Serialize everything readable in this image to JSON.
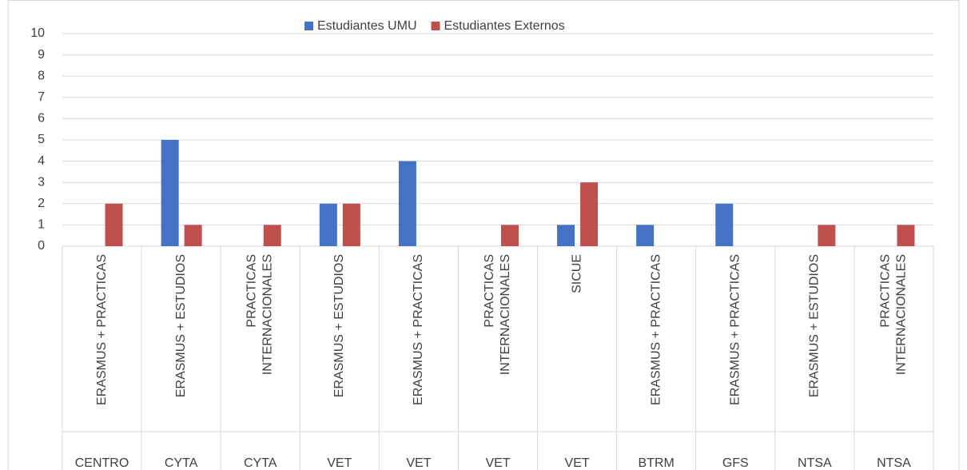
{
  "chart_data": {
    "type": "bar",
    "categories": [
      "ERASMUS + PRACTICAS",
      "ERASMUS + ESTUDIOS",
      "PRACTICAS INTERNACIONALES",
      "ERASMUS + ESTUDIOS",
      "ERASMUS + PRACTICAS",
      "PRACTICAS INTERNACIONALES",
      "SICUE",
      "ERASMUS + PRACTICAS",
      "ERASMUS + PRACTICAS",
      "ERASMUS + ESTUDIOS",
      "PRACTICAS INTERNACIONALES"
    ],
    "groups": [
      "CENTRO",
      "CYTA",
      "CYTA",
      "VET",
      "VET",
      "VET",
      "VET",
      "BTRM",
      "GFS",
      "NTSA",
      "NTSA"
    ],
    "series": [
      {
        "name": "Estudiantes UMU",
        "color": "#4472c4",
        "values": [
          0,
          5,
          0,
          2,
          4,
          0,
          1,
          1,
          2,
          0,
          0
        ]
      },
      {
        "name": "Estudiantes Externos",
        "color": "#c0504d",
        "values": [
          2,
          1,
          1,
          2,
          0,
          1,
          3,
          0,
          0,
          1,
          1
        ]
      }
    ],
    "ylim": [
      0,
      10
    ],
    "yticks": [
      0,
      1,
      2,
      3,
      4,
      5,
      6,
      7,
      8,
      9,
      10
    ],
    "grid": true,
    "legend": "top"
  }
}
